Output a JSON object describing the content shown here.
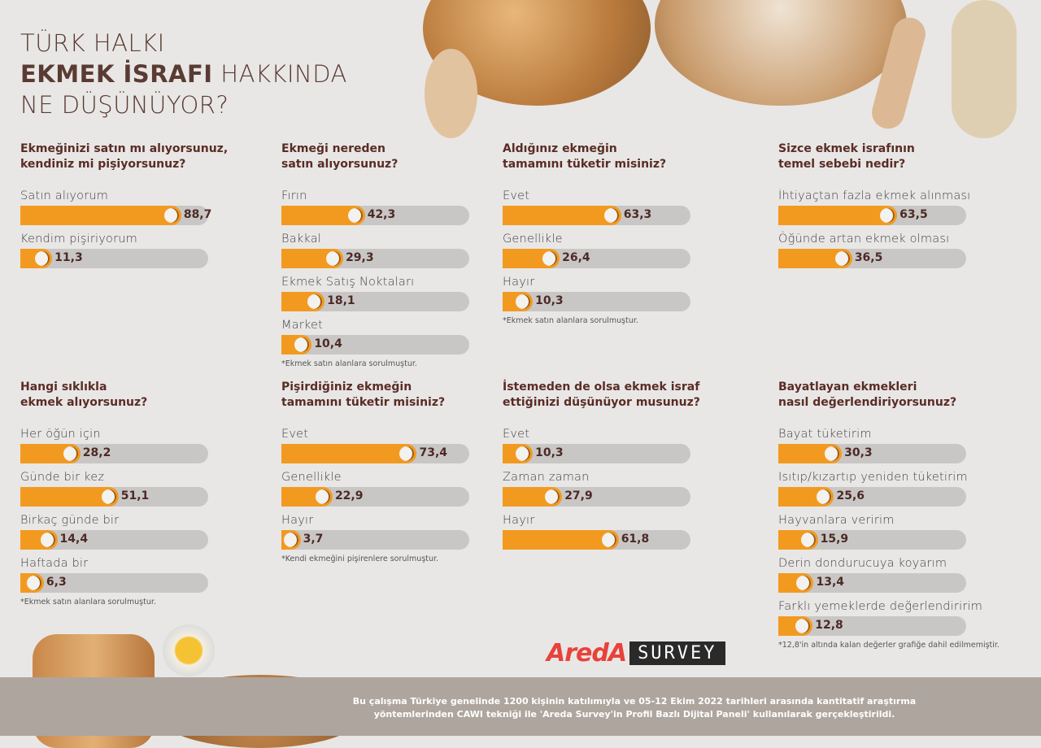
{
  "header": {
    "line1": "TÜRK HALKI",
    "line2_bold": "EKMEK İSRAFI",
    "line2_light": " HAKKINDA",
    "line3": "NE DÜŞÜNÜYOR?"
  },
  "colors": {
    "fill": "#f29a20",
    "track": "#c9c7c6",
    "question": "#5a2c26"
  },
  "chart_data": [
    {
      "type": "bar",
      "title": "Ekmeğinizi satın mı alıyorsunuz,\nkendiniz mi pişiyorsunuz?",
      "categories": [
        "Satın alıyorum",
        "Kendim pişiriyorum"
      ],
      "values": [
        88.7,
        11.3
      ],
      "labels": [
        "88,7",
        "11,3"
      ],
      "note": ""
    },
    {
      "type": "bar",
      "title": "Ekmeği nereden\nsatın alıyorsunuz?",
      "categories": [
        "Fırın",
        "Bakkal",
        "Ekmek Satış Noktaları",
        "Market"
      ],
      "values": [
        42.3,
        29.3,
        18.1,
        10.4
      ],
      "labels": [
        "42,3",
        "29,3",
        "18,1",
        "10,4"
      ],
      "note": "*Ekmek satın alanlara sorulmuştur."
    },
    {
      "type": "bar",
      "title": "Aldığınız ekmeğin\ntamamını tüketir misiniz?",
      "categories": [
        "Evet",
        "Genellikle",
        "Hayır"
      ],
      "values": [
        63.3,
        26.4,
        10.3
      ],
      "labels": [
        "63,3",
        "26,4",
        "10,3"
      ],
      "note": "*Ekmek satın alanlara sorulmuştur."
    },
    {
      "type": "bar",
      "title": "Sizce ekmek israfının\ntemel sebebi nedir?",
      "categories": [
        "İhtiyaçtan fazla ekmek alınması",
        "Öğünde artan ekmek olması"
      ],
      "values": [
        63.5,
        36.5
      ],
      "labels": [
        "63,5",
        "36,5"
      ],
      "note": ""
    },
    {
      "type": "bar",
      "title": "Hangi sıklıkla\nekmek alıyorsunuz?",
      "categories": [
        "Her öğün için",
        "Günde bir kez",
        "Birkaç günde bir",
        "Haftada bir"
      ],
      "values": [
        28.2,
        51.1,
        14.4,
        6.3
      ],
      "labels": [
        "28,2",
        "51,1",
        "14,4",
        "6,3"
      ],
      "note": "*Ekmek satın alanlara sorulmuştur."
    },
    {
      "type": "bar",
      "title": "Pişirdiğiniz ekmeğin\ntamamını tüketir misiniz?",
      "categories": [
        "Evet",
        "Genellikle",
        "Hayır"
      ],
      "values": [
        73.4,
        22.9,
        3.7
      ],
      "labels": [
        "73,4",
        "22,9",
        "3,7"
      ],
      "note": "*Kendi ekmeğini pişirenlere sorulmuştur."
    },
    {
      "type": "bar",
      "title": "İstemeden de olsa ekmek israf\nettiğinizi düşünüyor musunuz?",
      "categories": [
        "Evet",
        "Zaman zaman",
        "Hayır"
      ],
      "values": [
        10.3,
        27.9,
        61.8
      ],
      "labels": [
        "10,3",
        "27,9",
        "61,8"
      ],
      "note": ""
    },
    {
      "type": "bar",
      "title": "Bayatlayan ekmekleri\nnasıl değerlendiriyorsunuz?",
      "categories": [
        "Bayat tüketirim",
        "Isıtıp/kızartıp yeniden tüketirim",
        "Hayvanlara veririm",
        "Derin dondurucuya koyarım",
        "Farklı yemeklerde değerlendiririm"
      ],
      "values": [
        30.3,
        25.6,
        15.9,
        13.4,
        12.8
      ],
      "labels": [
        "30,3",
        "25,6",
        "15,9",
        "13,4",
        "12,8"
      ],
      "note": "*12,8'in altında kalan değerler grafiğe dahil edilmemiştir."
    }
  ],
  "logo": {
    "brand": "AredA",
    "product": "SURVEY"
  },
  "footer": {
    "text": "Bu çalışma Türkiye genelinde 1200 kişinin katılımıyla ve 05-12 Ekim 2022 tarihleri arasında kantitatif araştırma yöntemlerinden CAWI tekniği ile 'Areda Survey'in Profil Bazlı Dijital Paneli' kullanılarak gerçekleştirildi."
  }
}
